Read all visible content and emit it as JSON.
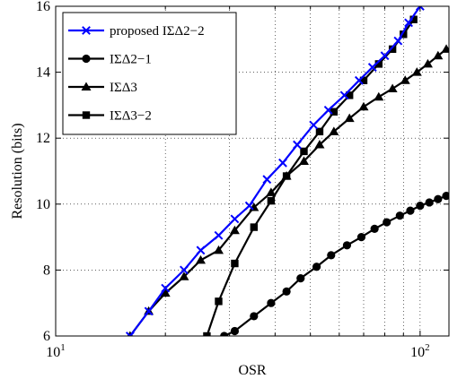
{
  "chart_data": {
    "type": "line",
    "xlabel": "OSR",
    "ylabel": "Resolution (bits)",
    "xscale": "log",
    "xlim": [
      10,
      120
    ],
    "ylim": [
      6,
      16
    ],
    "grid": true,
    "legend_position": "top-left",
    "x_ticks": [
      {
        "value": 10,
        "base": "10",
        "exp": "1"
      },
      {
        "value": 100,
        "base": "10",
        "exp": "2"
      }
    ],
    "y_ticks": [
      6,
      8,
      10,
      12,
      14,
      16
    ],
    "series": [
      {
        "name": "proposed IΣΔ2−2",
        "color": "#0000ff",
        "marker": "x",
        "x": [
          16,
          18,
          20,
          22.5,
          25,
          28,
          31,
          34,
          38,
          42,
          46,
          51,
          56,
          62,
          68,
          74,
          80,
          87,
          93,
          100
        ],
        "y": [
          6.0,
          6.75,
          7.45,
          8.0,
          8.6,
          9.05,
          9.55,
          9.95,
          10.75,
          11.25,
          11.8,
          12.4,
          12.85,
          13.3,
          13.75,
          14.15,
          14.5,
          14.95,
          15.5,
          16.0
        ]
      },
      {
        "name": "IΣΔ2−1",
        "color": "#000000",
        "marker": "circle",
        "x": [
          29,
          31,
          35,
          39,
          43,
          47,
          52,
          57,
          63,
          69,
          75,
          81,
          88,
          94,
          100,
          106,
          112,
          118
        ],
        "y": [
          6.0,
          6.15,
          6.6,
          7.0,
          7.35,
          7.75,
          8.1,
          8.45,
          8.75,
          9.0,
          9.25,
          9.45,
          9.65,
          9.8,
          9.95,
          10.05,
          10.15,
          10.25
        ]
      },
      {
        "name": "IΣΔ3",
        "color": "#000000",
        "marker": "triangle",
        "x": [
          16,
          18,
          20,
          22.5,
          25,
          28,
          31,
          35,
          39,
          43,
          48,
          53,
          58,
          64,
          70,
          77,
          84,
          91,
          98,
          105,
          112,
          118
        ],
        "y": [
          6.0,
          6.75,
          7.3,
          7.8,
          8.3,
          8.6,
          9.2,
          9.9,
          10.35,
          10.85,
          11.3,
          11.8,
          12.2,
          12.6,
          12.95,
          13.25,
          13.5,
          13.75,
          14.0,
          14.25,
          14.5,
          14.7
        ]
      },
      {
        "name": "IΣΔ3−2",
        "color": "#000000",
        "marker": "square",
        "x": [
          26,
          28,
          31,
          35,
          39,
          43,
          48,
          53,
          58,
          64,
          70,
          77,
          84,
          90,
          96
        ],
        "y": [
          6.0,
          7.05,
          8.2,
          9.3,
          10.1,
          10.85,
          11.6,
          12.2,
          12.8,
          13.3,
          13.75,
          14.25,
          14.7,
          15.15,
          15.6
        ]
      }
    ]
  }
}
